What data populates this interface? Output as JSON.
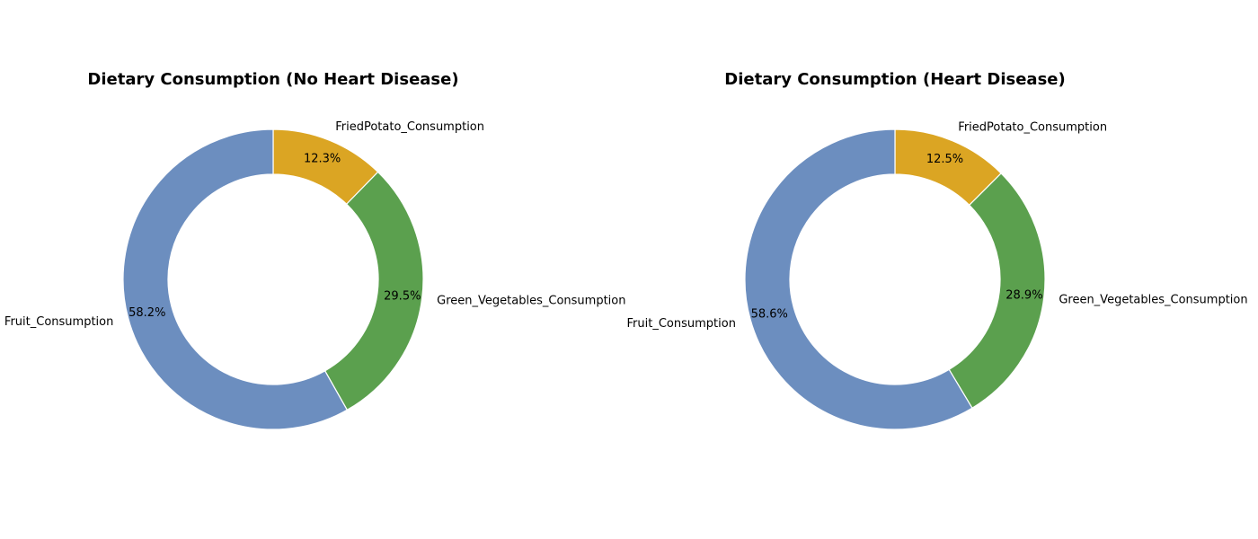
{
  "chart_data": [
    {
      "type": "pie",
      "title": "Dietary Consumption (No Heart Disease)",
      "donut": true,
      "categories": [
        "Fruit_Consumption",
        "Green_Vegetables_Consumption",
        "FriedPotato_Consumption"
      ],
      "values": [
        58.2,
        29.5,
        12.3
      ],
      "pct_labels": [
        "58.2%",
        "29.5%",
        "12.3%"
      ],
      "colors": [
        "#6c8ebf",
        "#5ba04e",
        "#dba523"
      ],
      "start_angle": "top",
      "direction": "counterclockwise"
    },
    {
      "type": "pie",
      "title": "Dietary Consumption (Heart Disease)",
      "donut": true,
      "categories": [
        "Fruit_Consumption",
        "Green_Vegetables_Consumption",
        "FriedPotato_Consumption"
      ],
      "values": [
        58.6,
        28.9,
        12.5
      ],
      "pct_labels": [
        "58.6%",
        "28.9%",
        "12.5%"
      ],
      "colors": [
        "#6c8ebf",
        "#5ba04e",
        "#dba523"
      ],
      "start_angle": "top",
      "direction": "counterclockwise"
    }
  ]
}
